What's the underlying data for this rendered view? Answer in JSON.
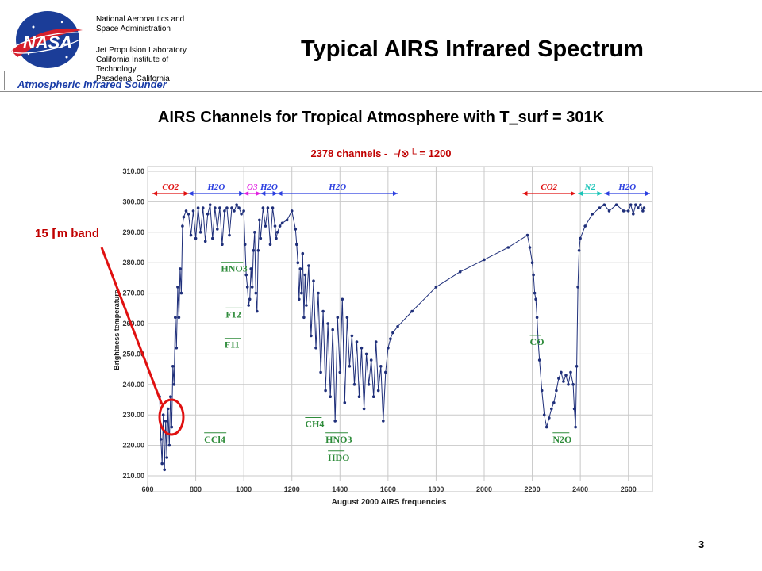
{
  "header": {
    "org_line1": "National Aeronautics and",
    "org_line2": "Space Administration",
    "lab_line1": "Jet Propulsion Laboratory",
    "lab_line2": "California Institute of",
    "lab_line3": "Technology",
    "lab_line4": "Pasadena, California",
    "instrument": "Atmospheric Infrared Sounder",
    "logo_text": "NASA"
  },
  "slide_title": "Typical AIRS Infrared Spectrum",
  "chart_title": "AIRS Channels for Tropical Atmosphere with T_surf = 301K",
  "chart_subtitle": "2378 channels  -  └/⊗└ = 1200",
  "band_label": "15  ⌈m band",
  "page_number": "3",
  "colors": {
    "data": "#1f2f7a",
    "band_red": "#e01010",
    "band_blue": "#2b3fe0",
    "species_green": "#2e8b3a",
    "o3_magenta": "#e020e0",
    "n2_cyan": "#19c4b8",
    "callout": "#e01010"
  },
  "chart_data": {
    "type": "scatter",
    "xlabel": "August 2000 AIRS frequencies",
    "ylabel": "Brightness temperature",
    "xlim": [
      600,
      2700
    ],
    "ylim": [
      210,
      310
    ],
    "x_ticks": [
      "600",
      "800",
      "1000",
      "1200",
      "1400",
      "1600",
      "1800",
      "2000",
      "2200",
      "2400",
      "2600"
    ],
    "y_ticks": [
      "210.00",
      "220.00",
      "230.00",
      "240.00",
      "250.00",
      "260.00",
      "270.00",
      "280.00",
      "290.00",
      "300.00",
      "310.00"
    ],
    "grid": true,
    "series": [
      {
        "points": [
          [
            650,
            236
          ],
          [
            655,
            222
          ],
          [
            660,
            214
          ],
          [
            665,
            230
          ],
          [
            670,
            212
          ],
          [
            675,
            228
          ],
          [
            680,
            216
          ],
          [
            685,
            232
          ],
          [
            690,
            220
          ],
          [
            695,
            236
          ],
          [
            700,
            226
          ],
          [
            705,
            246
          ],
          [
            710,
            240
          ],
          [
            715,
            262
          ],
          [
            720,
            252
          ],
          [
            725,
            272
          ],
          [
            730,
            262
          ],
          [
            735,
            278
          ],
          [
            740,
            270
          ],
          [
            745,
            292
          ],
          [
            750,
            295
          ],
          [
            760,
            297
          ],
          [
            770,
            296
          ],
          [
            780,
            289
          ],
          [
            790,
            297
          ],
          [
            800,
            288
          ],
          [
            810,
            298
          ],
          [
            820,
            290
          ],
          [
            830,
            298
          ],
          [
            840,
            287
          ],
          [
            850,
            296
          ],
          [
            860,
            299
          ],
          [
            870,
            288
          ],
          [
            880,
            298
          ],
          [
            890,
            291
          ],
          [
            900,
            298
          ],
          [
            910,
            286
          ],
          [
            920,
            297
          ],
          [
            930,
            298
          ],
          [
            940,
            289
          ],
          [
            950,
            298
          ],
          [
            960,
            297
          ],
          [
            970,
            299
          ],
          [
            980,
            298
          ],
          [
            990,
            296
          ],
          [
            1000,
            297
          ],
          [
            1005,
            286
          ],
          [
            1010,
            276
          ],
          [
            1015,
            272
          ],
          [
            1020,
            266
          ],
          [
            1025,
            268
          ],
          [
            1030,
            278
          ],
          [
            1035,
            272
          ],
          [
            1040,
            284
          ],
          [
            1045,
            290
          ],
          [
            1050,
            270
          ],
          [
            1055,
            264
          ],
          [
            1060,
            284
          ],
          [
            1065,
            294
          ],
          [
            1070,
            288
          ],
          [
            1080,
            298
          ],
          [
            1090,
            292
          ],
          [
            1100,
            298
          ],
          [
            1110,
            286
          ],
          [
            1120,
            298
          ],
          [
            1130,
            292
          ],
          [
            1135,
            288
          ],
          [
            1140,
            290
          ],
          [
            1150,
            292
          ],
          [
            1160,
            293
          ],
          [
            1180,
            294
          ],
          [
            1200,
            297
          ],
          [
            1215,
            291
          ],
          [
            1220,
            286
          ],
          [
            1225,
            280
          ],
          [
            1230,
            268
          ],
          [
            1235,
            278
          ],
          [
            1240,
            270
          ],
          [
            1245,
            283
          ],
          [
            1250,
            262
          ],
          [
            1255,
            276
          ],
          [
            1260,
            266
          ],
          [
            1270,
            279
          ],
          [
            1280,
            256
          ],
          [
            1290,
            274
          ],
          [
            1300,
            252
          ],
          [
            1310,
            270
          ],
          [
            1320,
            244
          ],
          [
            1330,
            264
          ],
          [
            1340,
            238
          ],
          [
            1350,
            260
          ],
          [
            1360,
            236
          ],
          [
            1370,
            258
          ],
          [
            1380,
            228
          ],
          [
            1390,
            262
          ],
          [
            1400,
            244
          ],
          [
            1410,
            268
          ],
          [
            1420,
            234
          ],
          [
            1430,
            262
          ],
          [
            1440,
            246
          ],
          [
            1450,
            256
          ],
          [
            1460,
            240
          ],
          [
            1470,
            254
          ],
          [
            1480,
            236
          ],
          [
            1490,
            252
          ],
          [
            1500,
            232
          ],
          [
            1510,
            250
          ],
          [
            1520,
            240
          ],
          [
            1530,
            248
          ],
          [
            1540,
            236
          ],
          [
            1550,
            254
          ],
          [
            1560,
            238
          ],
          [
            1570,
            246
          ],
          [
            1580,
            228
          ],
          [
            1590,
            244
          ],
          [
            1600,
            252
          ],
          [
            1610,
            255
          ],
          [
            1620,
            257
          ],
          [
            1640,
            259
          ],
          [
            1700,
            264
          ],
          [
            1800,
            272
          ],
          [
            1900,
            277
          ],
          [
            2000,
            281
          ],
          [
            2100,
            285
          ],
          [
            2180,
            289
          ],
          [
            2190,
            285
          ],
          [
            2200,
            280
          ],
          [
            2205,
            276
          ],
          [
            2210,
            270
          ],
          [
            2215,
            268
          ],
          [
            2220,
            262
          ],
          [
            2225,
            254
          ],
          [
            2230,
            248
          ],
          [
            2240,
            238
          ],
          [
            2250,
            230
          ],
          [
            2260,
            226
          ],
          [
            2270,
            229
          ],
          [
            2280,
            232
          ],
          [
            2290,
            234
          ],
          [
            2300,
            238
          ],
          [
            2310,
            242
          ],
          [
            2320,
            244
          ],
          [
            2330,
            241
          ],
          [
            2340,
            243
          ],
          [
            2350,
            240
          ],
          [
            2360,
            244
          ],
          [
            2370,
            240
          ],
          [
            2375,
            232
          ],
          [
            2380,
            226
          ],
          [
            2385,
            246
          ],
          [
            2390,
            272
          ],
          [
            2395,
            284
          ],
          [
            2400,
            288
          ],
          [
            2420,
            292
          ],
          [
            2450,
            296
          ],
          [
            2480,
            298
          ],
          [
            2500,
            299
          ],
          [
            2520,
            297
          ],
          [
            2550,
            299
          ],
          [
            2580,
            297
          ],
          [
            2600,
            297
          ],
          [
            2610,
            299
          ],
          [
            2620,
            296
          ],
          [
            2630,
            299
          ],
          [
            2640,
            298
          ],
          [
            2650,
            299
          ],
          [
            2660,
            297
          ],
          [
            2665,
            298
          ]
        ]
      }
    ],
    "band_labels": [
      {
        "text": "CO2",
        "x_start": 620,
        "x_end": 770,
        "color": "red"
      },
      {
        "text": "H2O",
        "x_start": 770,
        "x_end": 1000,
        "color": "blue"
      },
      {
        "text": "O3",
        "x_start": 1000,
        "x_end": 1070,
        "color": "magenta"
      },
      {
        "text": "H2O",
        "x_start": 1070,
        "x_end": 1140,
        "color": "blue"
      },
      {
        "text": "H2O",
        "x_start": 1140,
        "x_end": 1640,
        "color": "blue"
      },
      {
        "text": "CO2",
        "x_start": 2160,
        "x_end": 2380,
        "color": "red"
      },
      {
        "text": "N2",
        "x_start": 2390,
        "x_end": 2490,
        "color": "cyan"
      },
      {
        "text": "H2O",
        "x_start": 2500,
        "x_end": 2690,
        "color": "blue"
      }
    ],
    "species_labels": [
      {
        "text": "HNO3",
        "x": 905,
        "y": 277
      },
      {
        "text": "F12",
        "x": 925,
        "y": 262
      },
      {
        "text": "F11",
        "x": 920,
        "y": 252
      },
      {
        "text": "CCl4",
        "x": 835,
        "y": 221
      },
      {
        "text": "CH4",
        "x": 1255,
        "y": 226
      },
      {
        "text": "HNO3",
        "x": 1340,
        "y": 221
      },
      {
        "text": "HDO",
        "x": 1350,
        "y": 215
      },
      {
        "text": "CO",
        "x": 2190,
        "y": 253
      },
      {
        "text": "N2O",
        "x": 2285,
        "y": 221
      }
    ]
  }
}
